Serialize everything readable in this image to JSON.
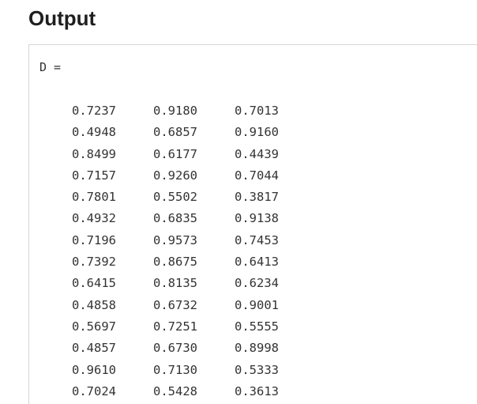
{
  "heading": "Output",
  "output": {
    "var_line": "D =",
    "rows": [
      [
        "0.7237",
        "0.9180",
        "0.7013"
      ],
      [
        "0.4948",
        "0.6857",
        "0.9160"
      ],
      [
        "0.8499",
        "0.6177",
        "0.4439"
      ],
      [
        "0.7157",
        "0.9260",
        "0.7044"
      ],
      [
        "0.7801",
        "0.5502",
        "0.3817"
      ],
      [
        "0.4932",
        "0.6835",
        "0.9138"
      ],
      [
        "0.7196",
        "0.9573",
        "0.7453"
      ],
      [
        "0.7392",
        "0.8675",
        "0.6413"
      ],
      [
        "0.6415",
        "0.8135",
        "0.6234"
      ],
      [
        "0.4858",
        "0.6732",
        "0.9001"
      ],
      [
        "0.5697",
        "0.7251",
        "0.5555"
      ],
      [
        "0.4857",
        "0.6730",
        "0.8998"
      ],
      [
        "0.9610",
        "0.7130",
        "0.5333"
      ],
      [
        "0.7024",
        "0.5428",
        "0.3613"
      ]
    ]
  }
}
